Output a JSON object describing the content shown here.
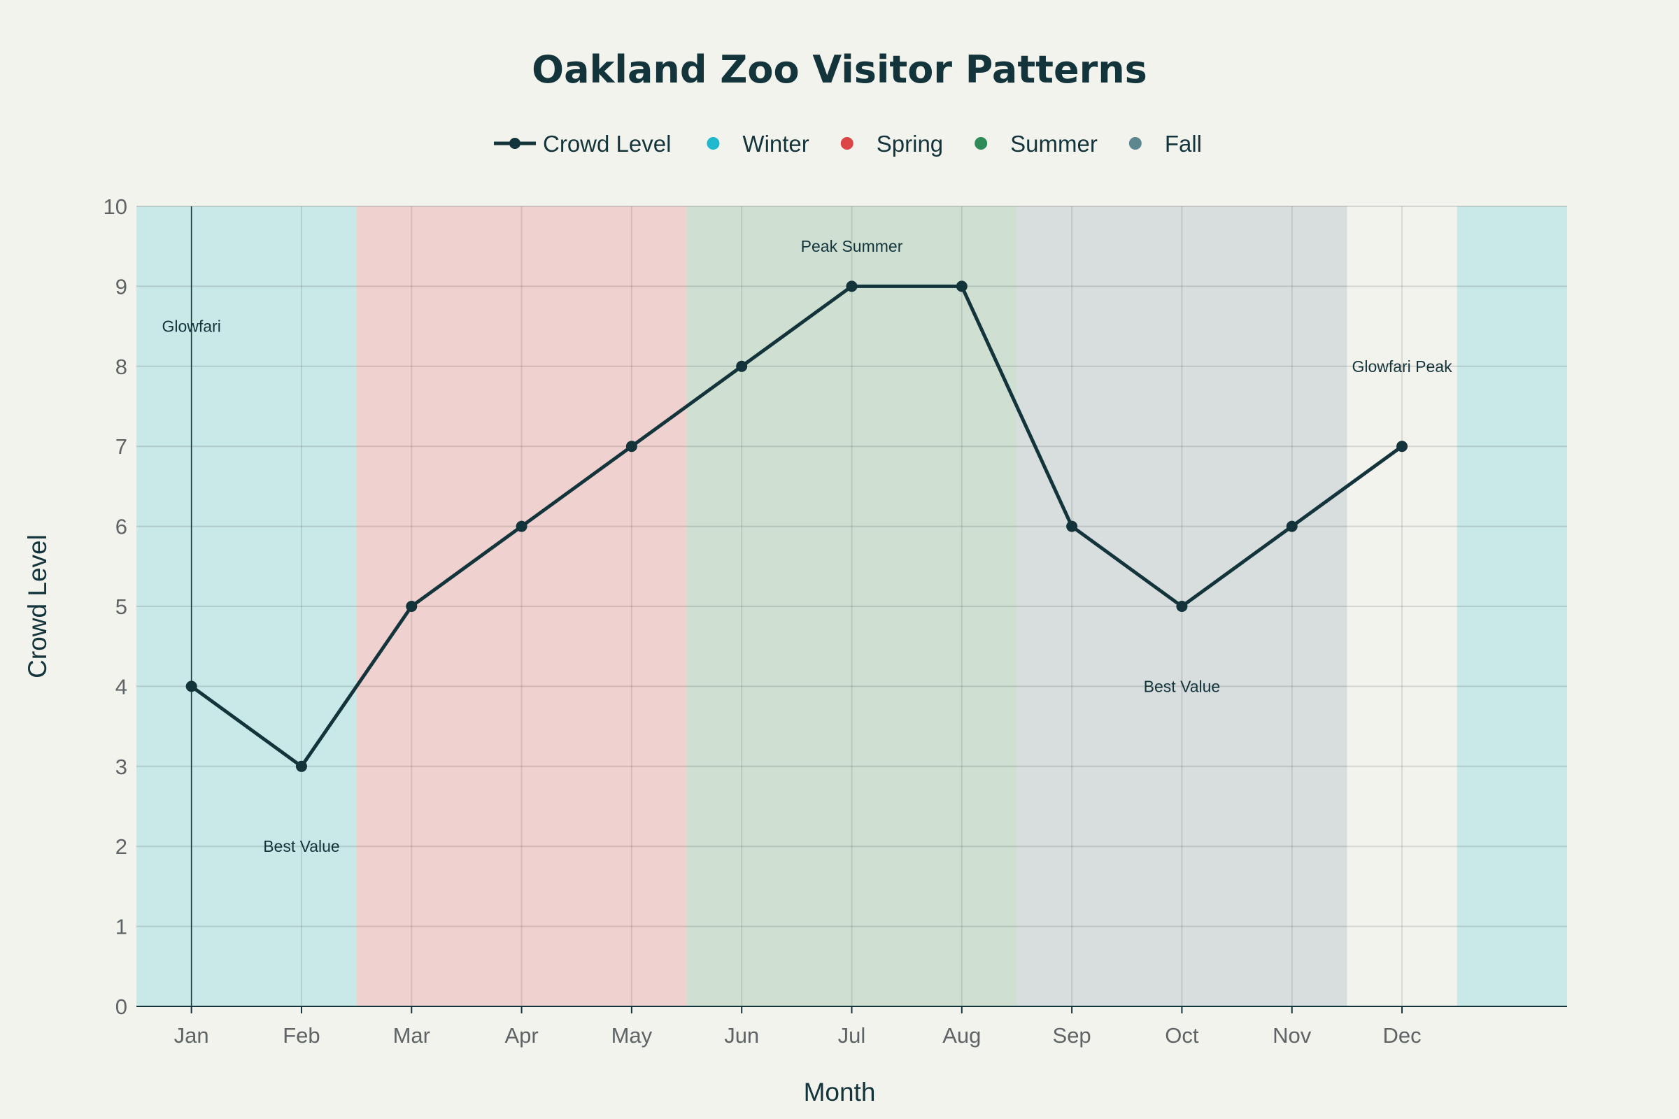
{
  "chart_data": {
    "type": "line",
    "title": "Oakland Zoo Visitor Patterns",
    "xlabel": "Month",
    "ylabel": "Crowd Level",
    "ylim": [
      0,
      10
    ],
    "y_ticks": [
      0,
      1,
      2,
      3,
      4,
      5,
      6,
      7,
      8,
      9,
      10
    ],
    "categories": [
      "Jan",
      "Feb",
      "Mar",
      "Apr",
      "May",
      "Jun",
      "Jul",
      "Aug",
      "Sep",
      "Oct",
      "Nov",
      "Dec"
    ],
    "series": [
      {
        "name": "Crowd Level",
        "values": [
          4,
          3,
          5,
          6,
          7,
          8,
          9,
          9,
          6,
          5,
          6,
          7
        ],
        "color": "#13343b"
      }
    ],
    "seasons": [
      {
        "name": "Winter",
        "color": "#1fb8cd",
        "band_color": "#c9e8e8",
        "start_month": "Jan",
        "end_month": "Feb"
      },
      {
        "name": "Spring",
        "color": "#db4545",
        "band_color": "#efd2cf",
        "start_month": "Mar",
        "end_month": "May"
      },
      {
        "name": "Summer",
        "color": "#2e8b57",
        "band_color": "#cfe0d2",
        "start_month": "Jun",
        "end_month": "Aug"
      },
      {
        "name": "Fall",
        "color": "#5d878f",
        "band_color": "#d7dedd",
        "start_month": "Sep",
        "end_month": "Nov"
      },
      {
        "name": "Winter",
        "color": "#1fb8cd",
        "band_color": "#c9e8e8",
        "start_month": "Dec",
        "end_month": "Dec",
        "offset_after_dec": true
      }
    ],
    "annotations": [
      {
        "text": "Glowfari",
        "month": "Jan",
        "y": 8.5
      },
      {
        "text": "Best Value",
        "month": "Feb",
        "y": 2.0
      },
      {
        "text": "Peak Summer",
        "month": "Jul",
        "y": 9.5
      },
      {
        "text": "Best Value",
        "month": "Oct",
        "y": 4.0
      },
      {
        "text": "Glowfari Peak",
        "month": "Dec",
        "y": 8.0
      }
    ],
    "vertical_line_month": "Jan",
    "grid": true,
    "legend_position": "top-center"
  }
}
